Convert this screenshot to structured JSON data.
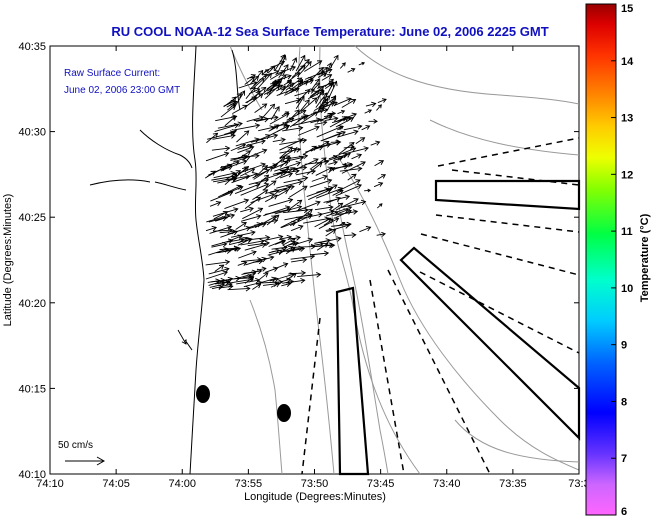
{
  "title": "RU COOL  NOAA-12  Sea Surface Temperature:  June 02, 2006 2225 GMT",
  "legend": {
    "line1": "Raw Surface Current:",
    "line2": "June 02, 2006 23:00 GMT"
  },
  "xlabel": "Longitude (Degrees:Minutes)",
  "ylabel": "Latitude (Degrees:Minutes)",
  "colorbar_label": "Temperature (°C)",
  "scale_label": "50 cm/s",
  "x_ticks": [
    "74:10",
    "74:05",
    "74:00",
    "73:55",
    "73:50",
    "73:45",
    "73:40",
    "73:35",
    "73:3"
  ],
  "y_ticks": [
    "40:35",
    "40:30",
    "40:25",
    "40:20",
    "40:15",
    "40:10"
  ],
  "cb_ticks": [
    "15",
    "14",
    "13",
    "12",
    "11",
    "10",
    "9",
    "8",
    "7",
    "6"
  ],
  "chart_data": {
    "type": "map",
    "title": "RU COOL  NOAA-12  Sea Surface Temperature:  June 02, 2006 2225 GMT",
    "xlabel": "Longitude (Degrees:Minutes)",
    "ylabel": "Latitude (Degrees:Minutes)",
    "colorbar": {
      "label": "Temperature (°C)",
      "range": [
        6,
        15
      ]
    },
    "vector_scale": "50 cm/s"
  }
}
